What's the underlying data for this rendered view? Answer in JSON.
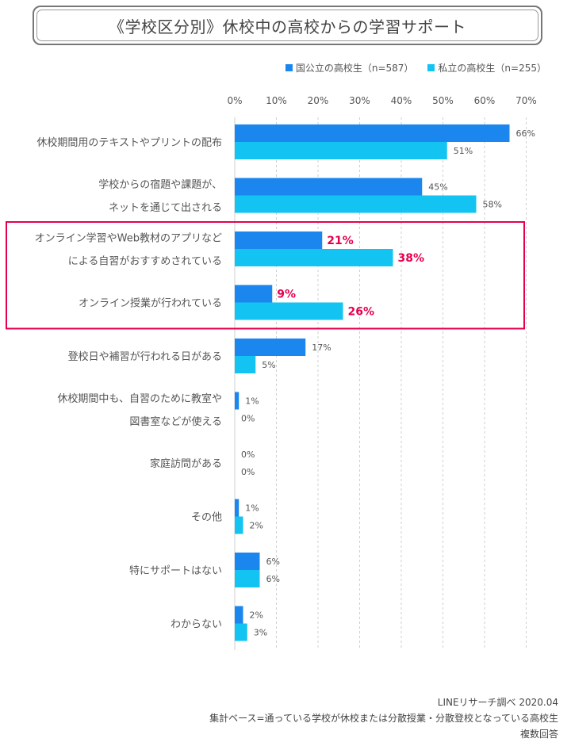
{
  "title": "《学校区分別》休校中の高校からの学習サポート",
  "legend": [
    {
      "label": "国公立の高校生（n=587）",
      "color": "#1a86ee"
    },
    {
      "label": "私立の高校生（n=255）",
      "color": "#13c4f2"
    }
  ],
  "chart_data": {
    "type": "bar",
    "orientation": "horizontal",
    "x_ticks": [
      "0%",
      "10%",
      "20%",
      "30%",
      "40%",
      "50%",
      "60%",
      "70%"
    ],
    "xlim": [
      0,
      70
    ],
    "categories": [
      [
        "休校期間用のテキストやプリントの配布"
      ],
      [
        "学校からの宿題や課題が、",
        "ネットを通じて出される"
      ],
      [
        "オンライン学習やWeb教材のアプリなど",
        "による自習がおすすめされている"
      ],
      [
        "オンライン授業が行われている"
      ],
      [
        "登校日や補習が行われる日がある"
      ],
      [
        "休校期間中も、自習のために教室や",
        "図書室などが使える"
      ],
      [
        "家庭訪問がある"
      ],
      [
        "その他"
      ],
      [
        "特にサポートはない"
      ],
      [
        "わからない"
      ]
    ],
    "series": [
      {
        "name": "国公立の高校生（n=587）",
        "color": "#1a86ee",
        "values": [
          66,
          45,
          21,
          9,
          17,
          1,
          0,
          1,
          6,
          2
        ],
        "labels": [
          "66%",
          "45%",
          "21%",
          "9%",
          "17%",
          "1%",
          "0%",
          "1%",
          "6%",
          "2%"
        ]
      },
      {
        "name": "私立の高校生（n=255）",
        "color": "#13c4f2",
        "values": [
          51,
          58,
          38,
          26,
          5,
          0,
          0,
          2,
          6,
          3
        ],
        "labels": [
          "51%",
          "58%",
          "38%",
          "26%",
          "5%",
          "0%",
          "0%",
          "2%",
          "6%",
          "3%"
        ]
      }
    ],
    "highlighted_categories": [
      2,
      3
    ],
    "highlight_color": "#e6004c",
    "grid": "vertical dashed"
  },
  "footer": {
    "line1": "LINEリサーチ調べ 2020.04",
    "line2": "集計ベース=通っている学校が休校または分散授業・分散登校となっている高校生",
    "line3": "複数回答"
  }
}
